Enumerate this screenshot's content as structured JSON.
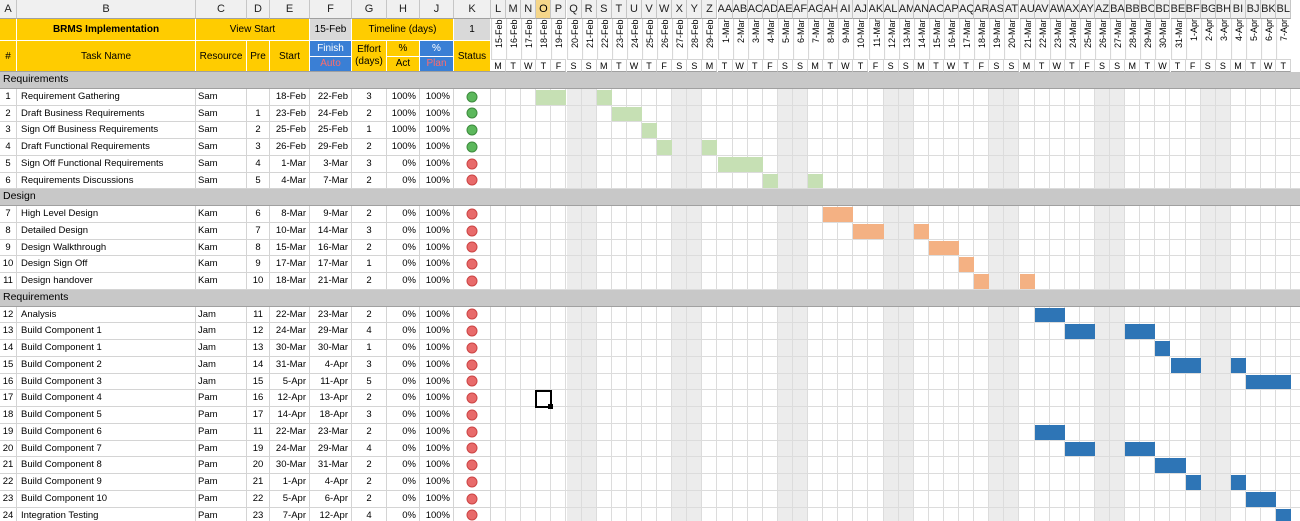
{
  "columns": [
    {
      "letter": "A"
    },
    {
      "letter": "B"
    },
    {
      "letter": "C"
    },
    {
      "letter": "D"
    },
    {
      "letter": "E"
    },
    {
      "letter": "F"
    },
    {
      "letter": "G"
    },
    {
      "letter": "H"
    },
    {
      "letter": "J"
    },
    {
      "letter": "K"
    }
  ],
  "header": {
    "title": "BRMS Implementation",
    "view_start_label": "View Start",
    "view_start_value": "15-Feb",
    "timeline_label": "Timeline (days)",
    "timeline_value": "1",
    "hash": "#",
    "task_name": "Task Name",
    "resource": "Resource",
    "pre": "Pre",
    "start": "Start",
    "finish": "Finish",
    "auto": "Auto",
    "effort": "Effort (days)",
    "pct_act_top": "%",
    "pct_act_bottom": "Act",
    "pct_plan_top": "%",
    "pct_plan_bottom": "Plan",
    "status": "Status"
  },
  "colors": {
    "yellow": "#ffcc00",
    "blue_header": "#3a7fd5",
    "green_bar": "#c6e0b4",
    "orange_bar": "#f4b183",
    "blue_bar": "#2e75b6",
    "status_green": "#5cb85c",
    "status_red": "#e86a6a"
  },
  "gantt_col_letters": [
    "L",
    "M",
    "N",
    "O",
    "P",
    "Q",
    "R",
    "S",
    "T",
    "U",
    "V",
    "W",
    "X",
    "Y",
    "Z",
    "AA",
    "AB",
    "AC",
    "AD",
    "AE",
    "AF",
    "AG",
    "AH",
    "AI",
    "AJ",
    "AK",
    "AL",
    "AM",
    "AN",
    "AO",
    "AP",
    "AQ",
    "AR",
    "AS",
    "AT",
    "AU",
    "AV",
    "AW",
    "AX",
    "AY",
    "AZ",
    "BA",
    "BB",
    "BC",
    "BD",
    "BE",
    "BF",
    "BG",
    "BH",
    "BI",
    "BJ",
    "BK",
    "BL"
  ],
  "gantt_col_header_text": [
    "L",
    "M",
    "N",
    "O",
    "P",
    "Q",
    "R",
    "S",
    "T",
    "U",
    "V",
    "W",
    "X",
    "Y",
    "Z",
    "AA",
    "AB",
    "AC",
    "AD",
    "AE",
    "AF",
    "AG",
    "AH",
    "AI",
    "AJ",
    "AK",
    "AL",
    "AM",
    "AN",
    "AO",
    "AP",
    "AQ",
    "AR",
    "AS",
    "AT",
    "AU",
    "AV",
    "AW",
    "AX",
    "AY",
    "AZ",
    "BA",
    "BB",
    "BC",
    "BD",
    "BE",
    "BF",
    "BG",
    "BH",
    "BI",
    "BJ",
    "BK",
    "BL"
  ],
  "dates": [
    "15-Feb",
    "16-Feb",
    "17-Feb",
    "18-Feb",
    "19-Feb",
    "20-Feb",
    "21-Feb",
    "22-Feb",
    "23-Feb",
    "24-Feb",
    "25-Feb",
    "26-Feb",
    "27-Feb",
    "28-Feb",
    "29-Feb",
    "1-Mar",
    "2-Mar",
    "3-Mar",
    "4-Mar",
    "5-Mar",
    "6-Mar",
    "7-Mar",
    "8-Mar",
    "9-Mar",
    "10-Mar",
    "11-Mar",
    "12-Mar",
    "13-Mar",
    "14-Mar",
    "15-Mar",
    "16-Mar",
    "17-Mar",
    "18-Mar",
    "19-Mar",
    "20-Mar",
    "21-Mar",
    "22-Mar",
    "23-Mar",
    "24-Mar",
    "25-Mar",
    "26-Mar",
    "27-Mar",
    "28-Mar",
    "29-Mar",
    "30-Mar",
    "31-Mar",
    "1-Apr",
    "2-Apr",
    "3-Apr",
    "4-Apr",
    "5-Apr",
    "6-Apr",
    "7-Apr"
  ],
  "weekdays": [
    "M",
    "T",
    "W",
    "T",
    "F",
    "S",
    "S",
    "M",
    "T",
    "W",
    "T",
    "F",
    "S",
    "S",
    "M",
    "T",
    "W",
    "T",
    "F",
    "S",
    "S",
    "M",
    "T",
    "W",
    "T",
    "F",
    "S",
    "S",
    "M",
    "T",
    "W",
    "T",
    "F",
    "S",
    "S",
    "M",
    "T",
    "W",
    "T",
    "F",
    "S",
    "S",
    "M",
    "T",
    "W",
    "T",
    "F",
    "S",
    "S",
    "M",
    "T",
    "W",
    "T"
  ],
  "rows": [
    {
      "kind": "section",
      "label": "Requirements",
      "rownum": "5"
    },
    {
      "kind": "task",
      "rownum": "6",
      "num": "1",
      "name": "Requirement Gathering",
      "res": "Sam",
      "pre": "",
      "start": "18-Feb",
      "finish": "22-Feb",
      "effort": "3",
      "act": "100%",
      "plan": "100%",
      "status": "green",
      "bar": "green",
      "bars": [
        [
          3,
          5
        ],
        [
          7,
          8
        ]
      ]
    },
    {
      "kind": "task",
      "rownum": "7",
      "num": "2",
      "name": "Draft Business Requirements",
      "res": "Sam",
      "pre": "1",
      "start": "23-Feb",
      "finish": "24-Feb",
      "effort": "2",
      "act": "100%",
      "plan": "100%",
      "status": "green",
      "bar": "green",
      "bars": [
        [
          8,
          10
        ]
      ]
    },
    {
      "kind": "task",
      "rownum": "8",
      "num": "3",
      "name": "Sign Off Business Requirements",
      "res": "Sam",
      "pre": "2",
      "start": "25-Feb",
      "finish": "25-Feb",
      "effort": "1",
      "act": "100%",
      "plan": "100%",
      "status": "green",
      "bar": "green",
      "bars": [
        [
          10,
          11
        ]
      ]
    },
    {
      "kind": "task",
      "rownum": "9",
      "num": "4",
      "name": "Draft Functional Requirements",
      "res": "Sam",
      "pre": "3",
      "start": "26-Feb",
      "finish": "29-Feb",
      "effort": "2",
      "act": "100%",
      "plan": "100%",
      "status": "green",
      "bar": "green",
      "bars": [
        [
          11,
          12
        ],
        [
          14,
          15
        ]
      ]
    },
    {
      "kind": "task",
      "rownum": "10",
      "num": "5",
      "name": "Sign Off Functional Requirements",
      "res": "Sam",
      "pre": "4",
      "start": "1-Mar",
      "finish": "3-Mar",
      "effort": "3",
      "act": "0%",
      "plan": "100%",
      "status": "red",
      "bar": "green",
      "bars": [
        [
          15,
          18
        ]
      ]
    },
    {
      "kind": "task",
      "rownum": "11",
      "num": "6",
      "name": "Requirements Discussions",
      "res": "Sam",
      "pre": "5",
      "start": "4-Mar",
      "finish": "7-Mar",
      "effort": "2",
      "act": "0%",
      "plan": "100%",
      "status": "red",
      "bar": "green",
      "bars": [
        [
          18,
          19
        ],
        [
          21,
          22
        ]
      ]
    },
    {
      "kind": "section",
      "label": "Design",
      "rownum": "12"
    },
    {
      "kind": "task",
      "rownum": "13",
      "num": "7",
      "name": "High Level Design",
      "res": "Kam",
      "pre": "6",
      "start": "8-Mar",
      "finish": "9-Mar",
      "effort": "2",
      "act": "0%",
      "plan": "100%",
      "status": "red",
      "bar": "orange",
      "bars": [
        [
          22,
          24
        ]
      ]
    },
    {
      "kind": "task",
      "rownum": "14",
      "num": "8",
      "name": "Detailed Design",
      "res": "Kam",
      "pre": "7",
      "start": "10-Mar",
      "finish": "14-Mar",
      "effort": "3",
      "act": "0%",
      "plan": "100%",
      "status": "red",
      "bar": "orange",
      "bars": [
        [
          24,
          26
        ],
        [
          28,
          29
        ]
      ]
    },
    {
      "kind": "task",
      "rownum": "15",
      "num": "9",
      "name": "Design Walkthrough",
      "res": "Kam",
      "pre": "8",
      "start": "15-Mar",
      "finish": "16-Mar",
      "effort": "2",
      "act": "0%",
      "plan": "100%",
      "status": "red",
      "bar": "orange",
      "bars": [
        [
          29,
          31
        ]
      ]
    },
    {
      "kind": "task",
      "rownum": "16",
      "num": "10",
      "name": "Design Sign Off",
      "res": "Kam",
      "pre": "9",
      "start": "17-Mar",
      "finish": "17-Mar",
      "effort": "1",
      "act": "0%",
      "plan": "100%",
      "status": "red",
      "bar": "orange",
      "bars": [
        [
          31,
          32
        ]
      ]
    },
    {
      "kind": "task",
      "rownum": "17",
      "num": "11",
      "name": "Design handover",
      "res": "Kam",
      "pre": "10",
      "start": "18-Mar",
      "finish": "21-Mar",
      "effort": "2",
      "act": "0%",
      "plan": "100%",
      "status": "red",
      "bar": "orange",
      "bars": [
        [
          32,
          33
        ],
        [
          35,
          36
        ]
      ]
    },
    {
      "kind": "section",
      "label": "Requirements",
      "rownum": "18"
    },
    {
      "kind": "task",
      "rownum": "19",
      "num": "12",
      "name": "Analysis",
      "res": "Jam",
      "pre": "11",
      "start": "22-Mar",
      "finish": "23-Mar",
      "effort": "2",
      "act": "0%",
      "plan": "100%",
      "status": "red",
      "bar": "blue",
      "bars": [
        [
          36,
          38
        ]
      ]
    },
    {
      "kind": "task",
      "rownum": "20",
      "num": "13",
      "name": "Build Component 1",
      "res": "Jam",
      "pre": "12",
      "start": "24-Mar",
      "finish": "29-Mar",
      "effort": "4",
      "act": "0%",
      "plan": "100%",
      "status": "red",
      "bar": "blue",
      "bars": [
        [
          38,
          40
        ],
        [
          42,
          44
        ]
      ]
    },
    {
      "kind": "task",
      "rownum": "21",
      "num": "14",
      "name": "Build Component 1",
      "res": "Jam",
      "pre": "13",
      "start": "30-Mar",
      "finish": "30-Mar",
      "effort": "1",
      "act": "0%",
      "plan": "100%",
      "status": "red",
      "bar": "blue",
      "bars": [
        [
          44,
          45
        ]
      ]
    },
    {
      "kind": "task",
      "rownum": "22",
      "num": "15",
      "name": "Build Component 2",
      "res": "Jam",
      "pre": "14",
      "start": "31-Mar",
      "finish": "4-Apr",
      "effort": "3",
      "act": "0%",
      "plan": "100%",
      "status": "red",
      "bar": "blue",
      "bars": [
        [
          45,
          47
        ],
        [
          49,
          50
        ]
      ]
    },
    {
      "kind": "task",
      "rownum": "23",
      "num": "16",
      "name": "Build Component 3",
      "res": "Jam",
      "pre": "15",
      "start": "5-Apr",
      "finish": "11-Apr",
      "effort": "5",
      "act": "0%",
      "plan": "100%",
      "status": "red",
      "bar": "blue",
      "bars": [
        [
          50,
          53
        ]
      ]
    },
    {
      "kind": "task",
      "rownum": "24",
      "num": "17",
      "name": "Build Component 4",
      "res": "Pam",
      "pre": "16",
      "start": "12-Apr",
      "finish": "13-Apr",
      "effort": "2",
      "act": "0%",
      "plan": "100%",
      "status": "red",
      "bar": "blue",
      "bars": []
    },
    {
      "kind": "task",
      "rownum": "25",
      "num": "18",
      "name": "Build Component 5",
      "res": "Pam",
      "pre": "17",
      "start": "14-Apr",
      "finish": "18-Apr",
      "effort": "3",
      "act": "0%",
      "plan": "100%",
      "status": "red",
      "bar": "blue",
      "bars": []
    },
    {
      "kind": "task",
      "rownum": "26",
      "num": "19",
      "name": "Build Component 6",
      "res": "Pam",
      "pre": "11",
      "start": "22-Mar",
      "finish": "23-Mar",
      "effort": "2",
      "act": "0%",
      "plan": "100%",
      "status": "red",
      "bar": "blue",
      "bars": [
        [
          36,
          38
        ]
      ]
    },
    {
      "kind": "task",
      "rownum": "27",
      "num": "20",
      "name": "Build Component 7",
      "res": "Pam",
      "pre": "19",
      "start": "24-Mar",
      "finish": "29-Mar",
      "effort": "4",
      "act": "0%",
      "plan": "100%",
      "status": "red",
      "bar": "blue",
      "bars": [
        [
          38,
          40
        ],
        [
          42,
          44
        ]
      ]
    },
    {
      "kind": "task",
      "rownum": "28",
      "num": "21",
      "name": "Build Component 8",
      "res": "Pam",
      "pre": "20",
      "start": "30-Mar",
      "finish": "31-Mar",
      "effort": "2",
      "act": "0%",
      "plan": "100%",
      "status": "red",
      "bar": "blue",
      "bars": [
        [
          44,
          46
        ]
      ]
    },
    {
      "kind": "task",
      "rownum": "29",
      "num": "22",
      "name": "Build Component 9",
      "res": "Pam",
      "pre": "21",
      "start": "1-Apr",
      "finish": "4-Apr",
      "effort": "2",
      "act": "0%",
      "plan": "100%",
      "status": "red",
      "bar": "blue",
      "bars": [
        [
          46,
          47
        ],
        [
          49,
          50
        ]
      ]
    },
    {
      "kind": "task",
      "rownum": "30",
      "num": "23",
      "name": "Build Component 10",
      "res": "Pam",
      "pre": "22",
      "start": "5-Apr",
      "finish": "6-Apr",
      "effort": "2",
      "act": "0%",
      "plan": "100%",
      "status": "red",
      "bar": "blue",
      "bars": [
        [
          50,
          52
        ]
      ]
    },
    {
      "kind": "task",
      "rownum": "31",
      "num": "24",
      "name": "Integration Testing",
      "res": "Pam",
      "pre": "23",
      "start": "7-Apr",
      "finish": "12-Apr",
      "effort": "4",
      "act": "0%",
      "plan": "100%",
      "status": "red",
      "bar": "blue",
      "bars": [
        [
          52,
          53
        ]
      ]
    }
  ],
  "selected_cell": {
    "col": "O",
    "row": "24"
  }
}
